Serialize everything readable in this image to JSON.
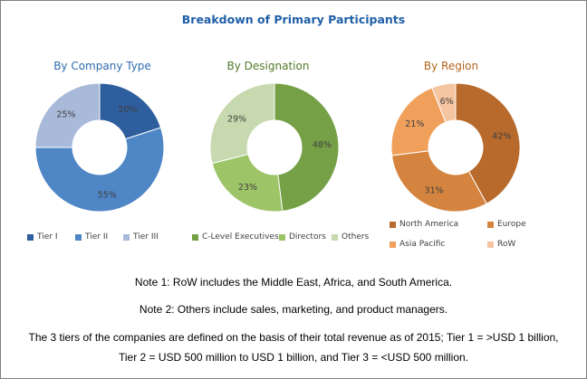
{
  "title": "Breakdown of Primary Participants",
  "colors": {
    "title": "#1f5fa8",
    "company_title": "#2e6db0",
    "designation_title": "#4f7a2a",
    "region_title": "#b5651d"
  },
  "chart_data": [
    {
      "type": "pie",
      "title": "By Company Type",
      "categories": [
        "Tier I",
        "Tier II",
        "Tier III"
      ],
      "values": [
        20,
        55,
        25
      ],
      "labels": [
        "20%",
        "55%",
        "25%"
      ],
      "colors": [
        "#2e5e9e",
        "#4f86c6",
        "#a9b9d9"
      ]
    },
    {
      "type": "pie",
      "title": "By Designation",
      "categories": [
        "C-Level Executives",
        "Directors",
        "Others"
      ],
      "values": [
        48,
        23,
        29
      ],
      "labels": [
        "48%",
        "23%",
        "29%"
      ],
      "colors": [
        "#76a046",
        "#9dc467",
        "#c7d9ae"
      ]
    },
    {
      "type": "pie",
      "title": "By Region",
      "categories": [
        "North America",
        "Europe",
        "Asia Pacific",
        "RoW"
      ],
      "values": [
        42,
        31,
        21,
        6
      ],
      "labels": [
        "42%",
        "31%",
        "21%",
        "6%"
      ],
      "colors": [
        "#b86a2c",
        "#d4843e",
        "#f0a05a",
        "#f5c4a0"
      ]
    }
  ],
  "notes": {
    "note1": "Note 1: RoW includes the Middle East, Africa, and South America.",
    "note2": "Note 2: Others include sales, marketing, and product managers.",
    "note3_line1": "The 3 tiers of the companies are defined on the basis of their total revenue as of 2015; Tier 1 = >USD 1 billion,",
    "note3_line2": "Tier 2 = USD 500 million to USD 1 billion, and Tier 3 = <USD 500 million."
  }
}
